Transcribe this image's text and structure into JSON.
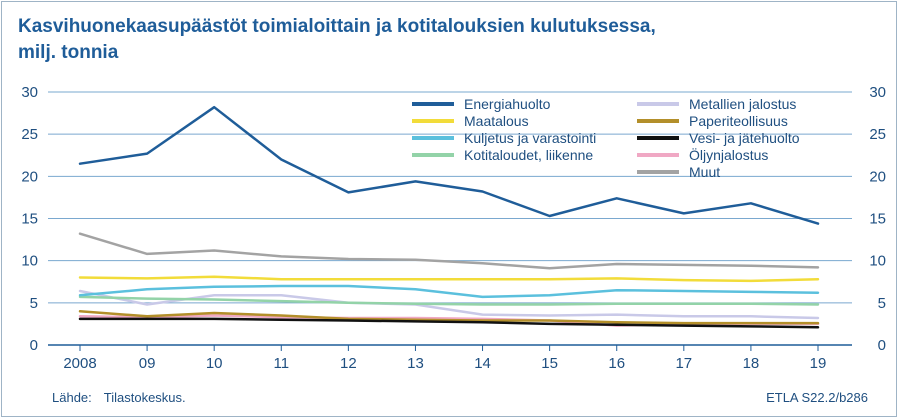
{
  "chart_data": {
    "type": "line",
    "title_lines": [
      "Kasvihuonekaasupäästöt toimialoittain ja kotitalouksien kulutuksessa,",
      "milj. tonnia"
    ],
    "x": [
      "2008",
      "09",
      "10",
      "11",
      "12",
      "13",
      "14",
      "15",
      "16",
      "17",
      "18",
      "19"
    ],
    "ylim": [
      0,
      30
    ],
    "yticks": [
      "0",
      "5",
      "10",
      "15",
      "20",
      "25",
      "30"
    ],
    "grid": true,
    "legend_position": "top-right",
    "series": [
      {
        "name": "Energiahuolto",
        "color": "#1f5d99",
        "values": [
          21.5,
          22.7,
          28.2,
          22.0,
          18.1,
          19.4,
          18.2,
          15.3,
          17.4,
          15.6,
          16.8,
          14.4
        ]
      },
      {
        "name": "Maatalous",
        "color": "#f2dc3a",
        "values": [
          8.0,
          7.9,
          8.1,
          7.8,
          7.8,
          7.8,
          7.8,
          7.8,
          7.9,
          7.7,
          7.6,
          7.8
        ]
      },
      {
        "name": "Kuljetus ja varastointi",
        "color": "#5bc0dd",
        "values": [
          5.9,
          6.6,
          6.9,
          7.0,
          7.0,
          6.6,
          5.7,
          5.9,
          6.5,
          6.4,
          6.3,
          6.2
        ]
      },
      {
        "name": "Kotitaloudet, liikenne",
        "color": "#93d3a8",
        "values": [
          5.7,
          5.5,
          5.4,
          5.2,
          5.0,
          4.9,
          4.8,
          4.8,
          4.9,
          4.9,
          4.9,
          4.8
        ]
      },
      {
        "name": "Metallien jalostus",
        "color": "#c9c9e8",
        "values": [
          6.4,
          4.8,
          5.9,
          5.9,
          5.0,
          4.8,
          3.6,
          3.5,
          3.6,
          3.4,
          3.4,
          3.2
        ]
      },
      {
        "name": "Paperiteollisuus",
        "color": "#b38f2a",
        "values": [
          4.0,
          3.4,
          3.8,
          3.5,
          3.1,
          3.0,
          2.9,
          2.9,
          2.7,
          2.6,
          2.6,
          2.6
        ]
      },
      {
        "name": "Vesi- ja jätehuolto",
        "color": "#111111",
        "values": [
          3.1,
          3.1,
          3.1,
          3.0,
          2.9,
          2.8,
          2.7,
          2.5,
          2.4,
          2.3,
          2.2,
          2.1
        ]
      },
      {
        "name": "Öljynjalostus",
        "color": "#f0a8c4",
        "values": [
          3.4,
          3.3,
          3.5,
          3.3,
          3.2,
          3.2,
          3.1,
          2.9,
          2.3,
          2.5,
          2.5,
          2.5
        ]
      },
      {
        "name": "Muut",
        "color": "#a3a3a3",
        "values": [
          13.2,
          10.8,
          11.2,
          10.5,
          10.2,
          10.1,
          9.7,
          9.1,
          9.6,
          9.5,
          9.4,
          9.2
        ]
      }
    ]
  },
  "footer": {
    "source_label": "Lähde:",
    "source_text": "Tilastokeskus.",
    "code": "ETLA S22.2/b286"
  }
}
